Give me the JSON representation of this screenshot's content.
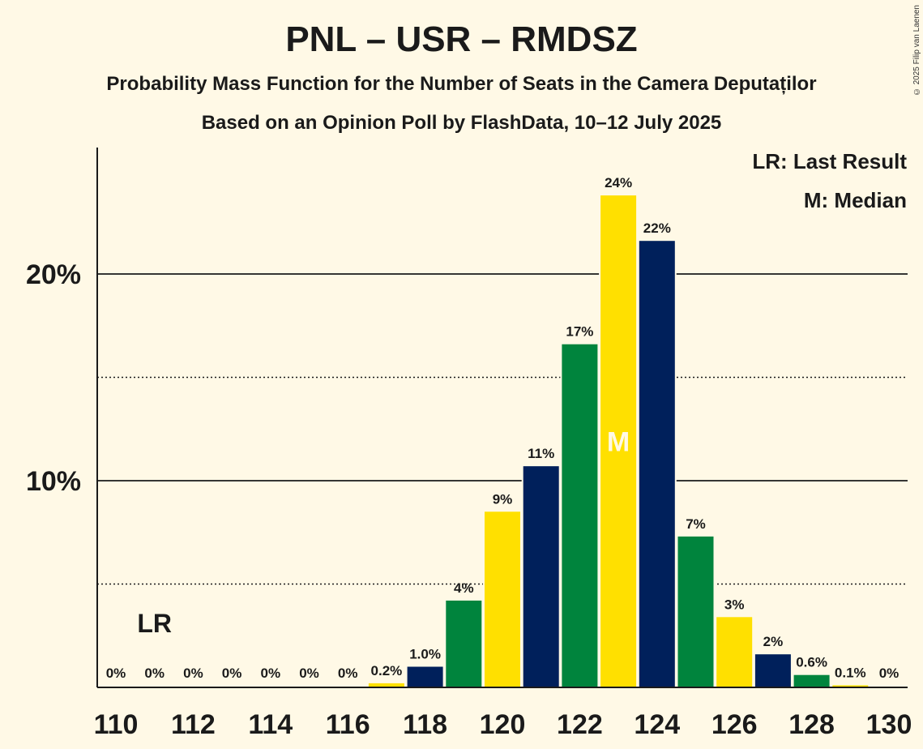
{
  "title": "PNL – USR – RMDSZ",
  "subtitle": "Probability Mass Function for the Number of Seats in the Camera Deputaților",
  "subtitle2": "Based on an Opinion Poll by FlashData, 10–12 July 2025",
  "copyright": "© 2025 Filip van Laenen",
  "legend": {
    "lr": "LR: Last Result",
    "median": "M: Median"
  },
  "colors": {
    "yellow": "#FFE000",
    "navy": "#00205B",
    "green": "#00843D",
    "background": "#FFF9E6"
  },
  "chart_data": {
    "type": "bar",
    "x": [
      110,
      111,
      112,
      113,
      114,
      115,
      116,
      117,
      118,
      119,
      120,
      121,
      122,
      123,
      124,
      125,
      126,
      127,
      128,
      129,
      130
    ],
    "values": [
      0,
      0,
      0,
      0,
      0,
      0,
      0,
      0.2,
      1.0,
      4.2,
      8.5,
      10.7,
      16.6,
      23.8,
      21.6,
      7.3,
      3.4,
      1.6,
      0.6,
      0.1,
      0
    ],
    "labels": [
      "0%",
      "0%",
      "0%",
      "0%",
      "0%",
      "0%",
      "0%",
      "0.2%",
      "1.0%",
      "4%",
      "9%",
      "11%",
      "17%",
      "24%",
      "22%",
      "7%",
      "3%",
      "2%",
      "0.6%",
      "0.1%",
      "0%"
    ],
    "colors": [
      "yellow",
      "navy",
      "green",
      "yellow",
      "navy",
      "green",
      "yellow",
      "yellow",
      "navy",
      "green",
      "yellow",
      "navy",
      "green",
      "yellow",
      "navy",
      "green",
      "yellow",
      "navy",
      "green",
      "yellow",
      "navy"
    ],
    "x_ticks": [
      110,
      112,
      114,
      116,
      118,
      120,
      122,
      124,
      126,
      128,
      130
    ],
    "y_ticks": [
      {
        "value": 10,
        "label": "10%"
      },
      {
        "value": 20,
        "label": "20%"
      }
    ],
    "y_minor_ticks": [
      5,
      15
    ],
    "ylim": [
      0,
      26
    ],
    "last_result": {
      "x": 111,
      "label": "LR"
    },
    "median": {
      "x": 123,
      "label": "M"
    }
  }
}
